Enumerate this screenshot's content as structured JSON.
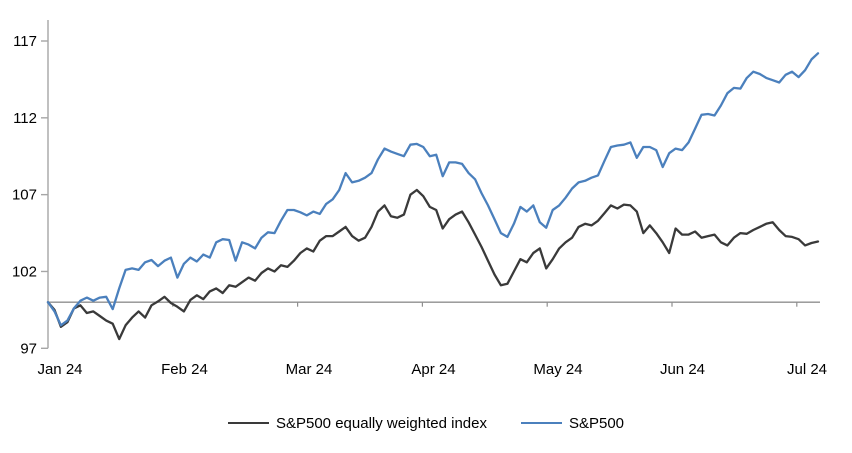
{
  "chart_data": {
    "type": "line",
    "title": "",
    "x": {
      "tick_labels": [
        "Jan 24",
        "Feb 24",
        "Mar 24",
        "Apr 24",
        "May 24",
        "Jun 24",
        "Jul 24"
      ],
      "description": "Daily observations, January 2024 to mid-July 2024"
    },
    "y": {
      "ticks": [
        97,
        102,
        107,
        112,
        117
      ],
      "min": 97,
      "max": 117,
      "reference_line": 100,
      "grid": false
    },
    "legend_position": "bottom-center",
    "series": [
      {
        "name": "S&P500 equally weighted index",
        "color": "#3a3a3a",
        "values": [
          100.0,
          99.5,
          98.4,
          98.7,
          99.6,
          99.8,
          99.3,
          99.4,
          99.1,
          98.8,
          98.6,
          97.6,
          98.5,
          99.0,
          99.4,
          99.0,
          99.8,
          100.05,
          100.35,
          99.95,
          99.7,
          99.4,
          100.15,
          100.45,
          100.2,
          100.7,
          100.9,
          100.6,
          101.1,
          101.0,
          101.3,
          101.6,
          101.4,
          101.9,
          102.2,
          102.0,
          102.4,
          102.3,
          102.7,
          103.2,
          103.5,
          103.3,
          104.0,
          104.3,
          104.3,
          104.6,
          104.9,
          104.3,
          104.0,
          104.2,
          104.9,
          105.9,
          106.3,
          105.6,
          105.5,
          105.7,
          107.0,
          107.3,
          106.9,
          106.2,
          106.0,
          104.8,
          105.4,
          105.7,
          105.9,
          105.2,
          104.4,
          103.6,
          102.7,
          101.8,
          101.1,
          101.2,
          102.0,
          102.8,
          102.6,
          103.2,
          103.5,
          102.2,
          102.8,
          103.5,
          103.9,
          104.2,
          104.9,
          105.1,
          105.0,
          105.3,
          105.8,
          106.3,
          106.1,
          106.35,
          106.3,
          105.9,
          104.5,
          105.0,
          104.5,
          103.9,
          103.2,
          104.8,
          104.4,
          104.4,
          104.6,
          104.2,
          104.3,
          104.4,
          103.9,
          103.7,
          104.2,
          104.5,
          104.45,
          104.7,
          104.9,
          105.1,
          105.2,
          104.7,
          104.3,
          104.25,
          104.1,
          103.7,
          103.85,
          103.95
        ]
      },
      {
        "name": "S&P500",
        "color": "#4b80bd",
        "values": [
          100.0,
          99.4,
          98.5,
          98.8,
          99.6,
          100.1,
          100.3,
          100.1,
          100.3,
          100.35,
          99.55,
          100.9,
          102.1,
          102.2,
          102.1,
          102.6,
          102.75,
          102.35,
          102.7,
          102.9,
          101.6,
          102.5,
          102.9,
          102.65,
          103.1,
          102.9,
          103.9,
          104.1,
          104.05,
          102.7,
          103.9,
          103.75,
          103.5,
          104.2,
          104.55,
          104.5,
          105.3,
          106.0,
          106.0,
          105.85,
          105.65,
          105.9,
          105.75,
          106.4,
          106.7,
          107.3,
          108.4,
          107.8,
          107.9,
          108.1,
          108.4,
          109.3,
          110.0,
          109.8,
          109.65,
          109.5,
          110.25,
          110.3,
          110.1,
          109.5,
          109.6,
          108.2,
          109.1,
          109.1,
          109.0,
          108.4,
          108.0,
          107.1,
          106.3,
          105.4,
          104.5,
          104.25,
          105.1,
          106.2,
          105.9,
          106.3,
          105.2,
          104.85,
          106.0,
          106.3,
          106.8,
          107.4,
          107.8,
          107.9,
          108.1,
          108.25,
          109.2,
          110.1,
          110.2,
          110.25,
          110.4,
          109.4,
          110.1,
          110.1,
          109.9,
          108.8,
          109.7,
          110.0,
          109.9,
          110.4,
          111.3,
          112.2,
          112.25,
          112.15,
          112.8,
          113.6,
          113.95,
          113.9,
          114.6,
          115.0,
          114.85,
          114.6,
          114.45,
          114.3,
          114.8,
          115.0,
          114.65,
          115.1,
          115.8,
          116.2
        ]
      }
    ]
  },
  "colors": {
    "axis": "#a6a6a6",
    "reference_line": "#8f8f8f",
    "text": "#000000",
    "background": "#ffffff"
  }
}
